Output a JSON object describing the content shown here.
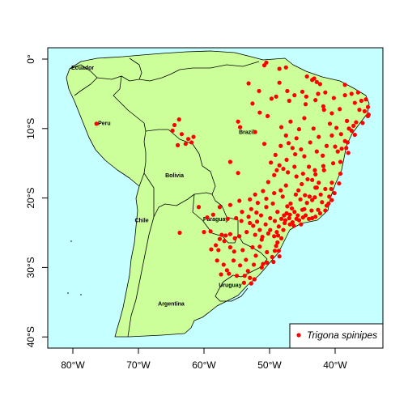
{
  "map": {
    "colors": {
      "ocean": "#c6ffff",
      "land": "#ccff99",
      "border": "#000000",
      "points": "#ff0000"
    }
  },
  "x_axis": {
    "ticks": [
      {
        "lon": -80,
        "label": "80°W"
      },
      {
        "lon": -70,
        "label": "70°W"
      },
      {
        "lon": -60,
        "label": "60°W"
      },
      {
        "lon": -50,
        "label": "50°W"
      },
      {
        "lon": -40,
        "label": "40°W"
      }
    ]
  },
  "y_axis": {
    "ticks": [
      {
        "lat": 0,
        "label": "0°"
      },
      {
        "lat": -10,
        "label": "10°S"
      },
      {
        "lat": -20,
        "label": "20°S"
      },
      {
        "lat": -30,
        "label": "30°S"
      },
      {
        "lat": -40,
        "label": "40°S"
      }
    ]
  },
  "countries": [
    {
      "name": "Ecuador",
      "lon": -78.5,
      "lat": -1.5
    },
    {
      "name": "Peru",
      "lon": -75.2,
      "lat": -9.5
    },
    {
      "name": "Brazil",
      "lon": -53.5,
      "lat": -10.8
    },
    {
      "name": "Bolivia",
      "lon": -64.5,
      "lat": -17.0
    },
    {
      "name": "Chile",
      "lon": -69.5,
      "lat": -23.5
    },
    {
      "name": "Paraguay",
      "lon": -58.2,
      "lat": -23.3
    },
    {
      "name": "Uruguay",
      "lon": -56.0,
      "lat": -32.8
    },
    {
      "name": "Argentina",
      "lon": -65.0,
      "lat": -35.5
    }
  ],
  "legend": {
    "label": "Trigona spinipes",
    "position": "bottom-right"
  },
  "occurrences": [
    [
      -50.5,
      -0.5
    ],
    [
      -50.8,
      -0.9
    ],
    [
      -48.5,
      -1.4
    ],
    [
      -47.5,
      -1.2
    ],
    [
      -44.3,
      -2.5
    ],
    [
      -43.5,
      -3.0
    ],
    [
      -42.8,
      -3.3
    ],
    [
      -38.5,
      -3.7
    ],
    [
      -37.5,
      -5.0
    ],
    [
      -36.5,
      -4.8
    ],
    [
      -35.3,
      -5.8
    ],
    [
      -35.0,
      -6.9
    ],
    [
      -35.5,
      -7.5
    ],
    [
      -34.9,
      -8.0
    ],
    [
      -35.0,
      -8.2
    ],
    [
      -36.3,
      -7.3
    ],
    [
      -37.0,
      -6.3
    ],
    [
      -38.5,
      -5.2
    ],
    [
      -40.2,
      -5.6
    ],
    [
      -41.5,
      -4.8
    ],
    [
      -42.6,
      -5.0
    ],
    [
      -43.0,
      -5.9
    ],
    [
      -44.5,
      -6.5
    ],
    [
      -41.7,
      -7.3
    ],
    [
      -40.5,
      -7.8
    ],
    [
      -39.3,
      -7.2
    ],
    [
      -38.2,
      -8.9
    ],
    [
      -36.8,
      -9.1
    ],
    [
      -37.5,
      -10.3
    ],
    [
      -37.0,
      -10.9
    ],
    [
      -38.5,
      -11.8
    ],
    [
      -38.3,
      -12.8
    ],
    [
      -39.0,
      -12.9
    ],
    [
      -40.0,
      -12.6
    ],
    [
      -40.5,
      -11.0
    ],
    [
      -41.3,
      -12.5
    ],
    [
      -42.5,
      -11.2
    ],
    [
      -43.3,
      -10.0
    ],
    [
      -44.7,
      -8.5
    ],
    [
      -45.5,
      -10.1
    ],
    [
      -46.8,
      -9.0
    ],
    [
      -47.5,
      -11.0
    ],
    [
      -48.2,
      -9.8
    ],
    [
      -48.3,
      -12.5
    ],
    [
      -46.5,
      -12.8
    ],
    [
      -45.2,
      -13.0
    ],
    [
      -47.4,
      -14.5
    ],
    [
      -48.5,
      -15.3
    ],
    [
      -47.9,
      -15.8
    ],
    [
      -46.2,
      -15.5
    ],
    [
      -44.0,
      -15.5
    ],
    [
      -43.0,
      -16.6
    ],
    [
      -41.7,
      -16.0
    ],
    [
      -40.3,
      -15.0
    ],
    [
      -39.2,
      -14.8
    ],
    [
      -39.2,
      -16.5
    ],
    [
      -40.5,
      -17.8
    ],
    [
      -41.5,
      -18.7
    ],
    [
      -42.8,
      -18.5
    ],
    [
      -43.9,
      -19.8
    ],
    [
      -43.5,
      -20.3
    ],
    [
      -44.3,
      -20.7
    ],
    [
      -45.3,
      -20.2
    ],
    [
      -46.0,
      -19.5
    ],
    [
      -47.5,
      -18.2
    ],
    [
      -48.3,
      -18.9
    ],
    [
      -49.3,
      -16.7
    ],
    [
      -50.2,
      -17.7
    ],
    [
      -51.0,
      -19.0
    ],
    [
      -52.2,
      -19.5
    ],
    [
      -53.0,
      -20.2
    ],
    [
      -54.6,
      -20.4
    ],
    [
      -56.0,
      -21.0
    ],
    [
      -54.2,
      -22.0
    ],
    [
      -53.2,
      -22.7
    ],
    [
      -52.0,
      -22.1
    ],
    [
      -51.3,
      -22.5
    ],
    [
      -50.5,
      -21.3
    ],
    [
      -49.5,
      -20.8
    ],
    [
      -48.8,
      -22.0
    ],
    [
      -47.8,
      -22.5
    ],
    [
      -47.0,
      -22.9
    ],
    [
      -46.5,
      -23.5
    ],
    [
      -45.5,
      -23.2
    ],
    [
      -44.9,
      -22.8
    ],
    [
      -43.5,
      -22.9
    ],
    [
      -43.0,
      -22.7
    ],
    [
      -42.3,
      -22.2
    ],
    [
      -41.5,
      -21.8
    ],
    [
      -41.0,
      -20.8
    ],
    [
      -40.5,
      -20.3
    ],
    [
      -42.0,
      -20.6
    ],
    [
      -45.0,
      -21.7
    ],
    [
      -46.2,
      -22.0
    ],
    [
      -47.3,
      -21.2
    ],
    [
      -48.2,
      -23.0
    ],
    [
      -49.2,
      -23.3
    ],
    [
      -48.6,
      -24.1
    ],
    [
      -47.9,
      -24.6
    ],
    [
      -48.7,
      -25.4
    ],
    [
      -49.3,
      -25.5
    ],
    [
      -50.2,
      -25.1
    ],
    [
      -51.5,
      -24.6
    ],
    [
      -52.5,
      -24.0
    ],
    [
      -53.5,
      -24.9
    ],
    [
      -54.6,
      -25.5
    ],
    [
      -55.3,
      -25.8
    ],
    [
      -56.0,
      -25.2
    ],
    [
      -56.7,
      -25.4
    ],
    [
      -57.3,
      -25.3
    ],
    [
      -56.0,
      -27.1
    ],
    [
      -55.4,
      -27.7
    ],
    [
      -54.1,
      -27.5
    ],
    [
      -52.6,
      -27.1
    ],
    [
      -51.5,
      -27.0
    ],
    [
      -50.4,
      -27.8
    ],
    [
      -49.2,
      -27.6
    ],
    [
      -48.6,
      -27.6
    ],
    [
      -48.8,
      -26.4
    ],
    [
      -49.6,
      -28.5
    ],
    [
      -50.4,
      -29.3
    ],
    [
      -51.2,
      -30.0
    ],
    [
      -51.0,
      -29.5
    ],
    [
      -52.4,
      -29.6
    ],
    [
      -53.3,
      -30.5
    ],
    [
      -53.8,
      -31.2
    ],
    [
      -53.0,
      -31.5
    ],
    [
      -52.3,
      -31.7
    ],
    [
      -52.8,
      -32.3
    ],
    [
      -55.0,
      -31.2
    ],
    [
      -56.5,
      -30.4
    ],
    [
      -56.2,
      -30.9
    ],
    [
      -58.0,
      -29.0
    ],
    [
      -57.8,
      -27.5
    ],
    [
      -58.9,
      -27.4
    ],
    [
      -59.0,
      -24.8
    ],
    [
      -63.7,
      -25.0
    ],
    [
      -59.5,
      -22.8
    ],
    [
      -58.6,
      -22.4
    ],
    [
      -57.6,
      -21.3
    ],
    [
      -60.8,
      -21.3
    ],
    [
      -60.0,
      -24.9
    ],
    [
      -54.8,
      -16.4
    ],
    [
      -56.0,
      -14.8
    ],
    [
      -54.8,
      -9.0
    ],
    [
      -52.2,
      -10.5
    ],
    [
      -50.8,
      -12.2
    ],
    [
      -52.6,
      -6.4
    ],
    [
      -51.5,
      -7.7
    ],
    [
      -49.0,
      -5.4
    ],
    [
      -48.5,
      -3.4
    ],
    [
      -47.3,
      -4.6
    ],
    [
      -47.0,
      -6.0
    ],
    [
      -46.2,
      -5.2
    ],
    [
      -45.0,
      -4.7
    ],
    [
      -44.4,
      -5.4
    ],
    [
      -43.2,
      -2.8
    ],
    [
      -42.3,
      -3.6
    ],
    [
      -41.8,
      -6.8
    ],
    [
      -40.8,
      -9.3
    ],
    [
      -39.8,
      -9.9
    ],
    [
      -39.1,
      -10.8
    ],
    [
      -38.1,
      -12.0
    ],
    [
      -41.9,
      -13.9
    ],
    [
      -42.8,
      -13.3
    ],
    [
      -44.7,
      -14.0
    ],
    [
      -45.9,
      -16.9
    ],
    [
      -45.1,
      -18.0
    ],
    [
      -44.2,
      -17.3
    ],
    [
      -43.6,
      -21.8
    ],
    [
      -44.5,
      -22.5
    ],
    [
      -46.9,
      -23.8
    ],
    [
      -47.6,
      -23.2
    ],
    [
      -49.9,
      -22.9
    ],
    [
      -50.6,
      -23.8
    ],
    [
      -51.9,
      -23.4
    ],
    [
      -51.2,
      -26.0
    ],
    [
      -49.0,
      -26.9
    ],
    [
      -48.5,
      -28.4
    ],
    [
      -49.4,
      -29.2
    ],
    [
      -52.1,
      -28.3
    ],
    [
      -53.6,
      -28.9
    ],
    [
      -54.5,
      -29.7
    ],
    [
      -55.5,
      -29.0
    ],
    [
      -57.0,
      -29.6
    ],
    [
      -57.4,
      -31.0
    ],
    [
      -53.9,
      -32.2
    ],
    [
      -64.5,
      -9.5
    ],
    [
      -64.8,
      -10.3
    ],
    [
      -63.8,
      -8.7
    ],
    [
      -62.4,
      -11.5
    ],
    [
      -61.9,
      -12.0
    ],
    [
      -62.8,
      -12.2
    ],
    [
      -63.4,
      -10.8
    ],
    [
      -64.0,
      -12.4
    ],
    [
      -61.6,
      -11.2
    ],
    [
      -76.4,
      -9.3
    ],
    [
      -49.7,
      -5.7
    ],
    [
      -50.3,
      -8.2
    ],
    [
      -53.2,
      -3.5
    ],
    [
      -37.2,
      -9.6
    ],
    [
      -36.0,
      -6.0
    ],
    [
      -35.8,
      -9.2
    ],
    [
      -38.0,
      -13.5
    ],
    [
      -39.4,
      -17.9
    ],
    [
      -40.1,
      -19.3
    ],
    [
      -40.9,
      -19.8
    ],
    [
      -41.3,
      -21.1
    ],
    [
      -42.6,
      -21.7
    ],
    [
      -44.0,
      -23.0
    ],
    [
      -45.2,
      -23.8
    ],
    [
      -46.3,
      -24.0
    ],
    [
      -46.9,
      -22.4
    ],
    [
      -47.4,
      -22.2
    ],
    [
      -45.7,
      -22.5
    ],
    [
      -44.7,
      -21.6
    ],
    [
      -43.1,
      -19.9
    ],
    [
      -42.2,
      -19.5
    ],
    [
      -40.6,
      -18.7
    ],
    [
      -41.8,
      -15.4
    ],
    [
      -39.6,
      -13.3
    ],
    [
      -37.9,
      -10.0
    ],
    [
      -43.8,
      -12.0
    ],
    [
      -45.9,
      -11.4
    ],
    [
      -47.1,
      -12.1
    ],
    [
      -49.1,
      -13.8
    ],
    [
      -49.8,
      -14.9
    ],
    [
      -48.9,
      -16.0
    ],
    [
      -47.2,
      -16.3
    ],
    [
      -44.9,
      -16.5
    ],
    [
      -43.5,
      -17.4
    ],
    [
      -42.5,
      -17.8
    ],
    [
      -43.0,
      -18.5
    ],
    [
      -45.6,
      -18.9
    ],
    [
      -46.8,
      -20.8
    ],
    [
      -48.0,
      -19.8
    ],
    [
      -49.3,
      -19.3
    ],
    [
      -50.5,
      -20.1
    ],
    [
      -51.8,
      -20.7
    ],
    [
      -52.8,
      -21.6
    ],
    [
      -54.3,
      -23.3
    ],
    [
      -55.1,
      -22.9
    ],
    [
      -53.0,
      -23.6
    ],
    [
      -52.2,
      -25.3
    ],
    [
      -51.1,
      -25.6
    ],
    [
      -49.9,
      -24.6
    ],
    [
      -48.2,
      -25.8
    ],
    [
      -48.9,
      -24.9
    ],
    [
      -47.7,
      -23.6
    ],
    [
      -46.6,
      -21.5
    ],
    [
      -45.9,
      -23.0
    ],
    [
      -44.6,
      -19.6
    ],
    [
      -43.1,
      -16.0
    ],
    [
      -46.1,
      -13.7
    ],
    [
      -51.6,
      -4.6
    ],
    [
      -54.5,
      -9.8
    ],
    [
      -56.9,
      -26.2
    ],
    [
      -57.6,
      -25.9
    ],
    [
      -58.2,
      -26.8
    ],
    [
      -56.4,
      -23.0
    ]
  ]
}
